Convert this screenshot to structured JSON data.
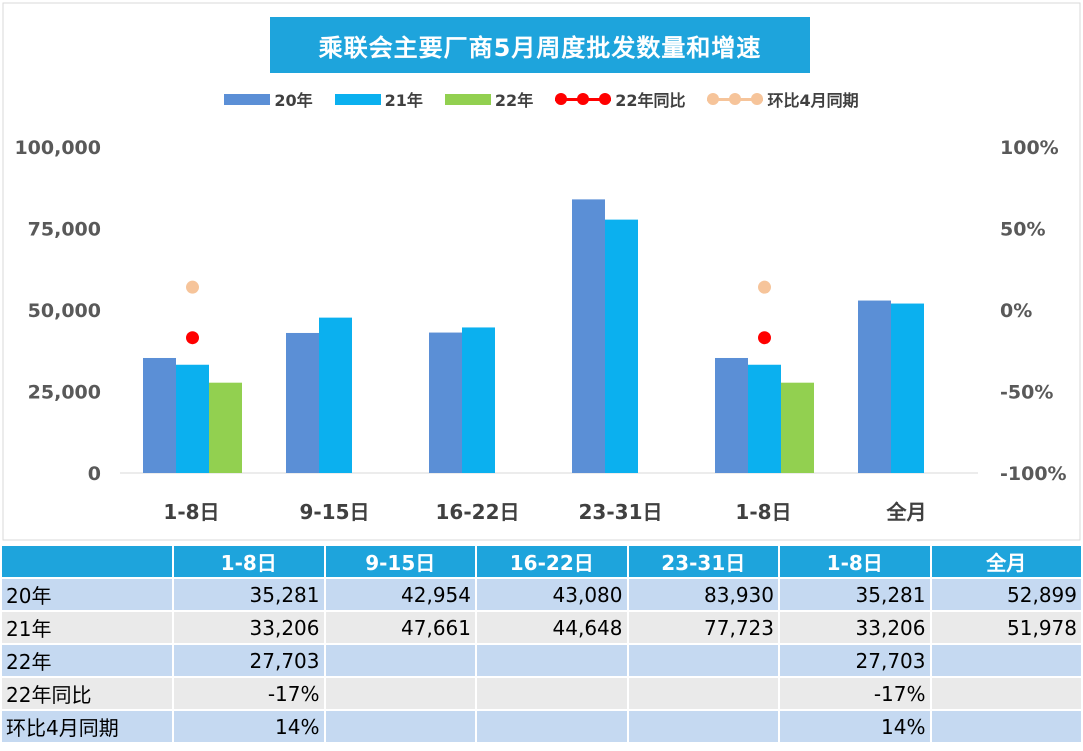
{
  "title": "乘联会主要厂商5月周度批发数量和增速",
  "legend": [
    {
      "name": "20年",
      "kind": "bar",
      "color": "#5b8fd6"
    },
    {
      "name": "21年",
      "kind": "bar",
      "color": "#0bb0ef"
    },
    {
      "name": "22年",
      "kind": "bar",
      "color": "#92d050"
    },
    {
      "name": "22年同比",
      "kind": "line",
      "color": "#ff0000"
    },
    {
      "name": "环比4月同期",
      "kind": "line",
      "color": "#f6c49a"
    }
  ],
  "chart_data": {
    "type": "bar",
    "title": "乘联会主要厂商5月周度批发数量和增速",
    "categories": [
      "1-8日",
      "9-15日",
      "16-22日",
      "23-31日",
      "1-8日",
      "全月"
    ],
    "series": [
      {
        "name": "20年",
        "values": [
          35281,
          42954,
          43080,
          83930,
          35281,
          52899
        ],
        "color": "#5b8fd6"
      },
      {
        "name": "21年",
        "values": [
          33206,
          47661,
          44648,
          77723,
          33206,
          51978
        ],
        "color": "#0bb0ef"
      },
      {
        "name": "22年",
        "values": [
          27703,
          null,
          null,
          null,
          27703,
          null
        ],
        "color": "#92d050"
      }
    ],
    "secondary_series": [
      {
        "name": "22年同比",
        "values": [
          -17,
          null,
          null,
          null,
          -17,
          null
        ],
        "color": "#ff0000"
      },
      {
        "name": "环比4月同期",
        "values": [
          14,
          null,
          null,
          null,
          14,
          null
        ],
        "color": "#f6c49a"
      }
    ],
    "ylim": [
      0,
      100000
    ],
    "yticks": [
      "0",
      "25,000",
      "50,000",
      "75,000",
      "100,000"
    ],
    "y2lim": [
      -100,
      100
    ],
    "y2ticks": [
      "-100%",
      "-50%",
      "0%",
      "50%",
      "100%"
    ],
    "grid": false,
    "legend_position": "top"
  },
  "table": {
    "headers": [
      "1-8日",
      "9-15日",
      "16-22日",
      "23-31日",
      "1-8日",
      "全月"
    ],
    "rows": [
      {
        "label": "20年",
        "cells": [
          "35,281",
          "42,954",
          "43,080",
          "83,930",
          "35,281",
          "52,899"
        ]
      },
      {
        "label": "21年",
        "cells": [
          "33,206",
          "47,661",
          "44,648",
          "77,723",
          "33,206",
          "51,978"
        ]
      },
      {
        "label": "22年",
        "cells": [
          "27,703",
          "",
          "",
          "",
          "27,703",
          ""
        ]
      },
      {
        "label": "22年同比",
        "cells": [
          "-17%",
          "",
          "",
          "",
          "-17%",
          ""
        ]
      },
      {
        "label": "环比4月同期",
        "cells": [
          "14%",
          "",
          "",
          "",
          "14%",
          ""
        ]
      }
    ]
  }
}
